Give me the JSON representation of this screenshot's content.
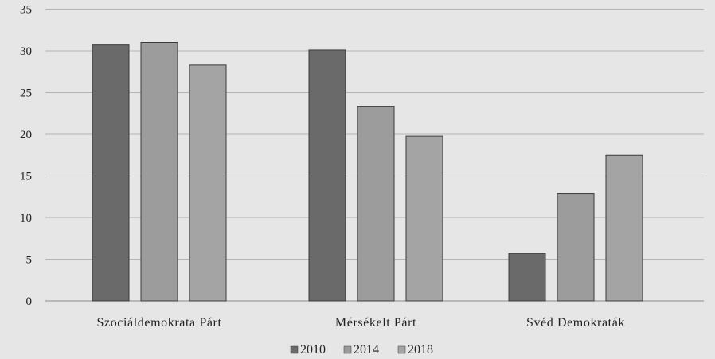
{
  "chart_data": {
    "type": "bar",
    "categories": [
      "Szociáldemokrata Párt",
      "Mérsékelt Párt",
      "Svéd Demokraták"
    ],
    "series": [
      {
        "name": "2010",
        "values": [
          30.7,
          30.1,
          5.7
        ],
        "color": "#6a6a6a"
      },
      {
        "name": "2014",
        "values": [
          31.0,
          23.3,
          12.9
        ],
        "color": "#9c9c9c"
      },
      {
        "name": "2018",
        "values": [
          28.3,
          19.8,
          17.5
        ],
        "color": "#a4a4a4"
      }
    ],
    "y_ticks": [
      "0",
      "5",
      "10",
      "15",
      "20",
      "25",
      "30",
      "35"
    ],
    "ylim": [
      0,
      35
    ],
    "grid": true,
    "legend_position": "bottom"
  }
}
